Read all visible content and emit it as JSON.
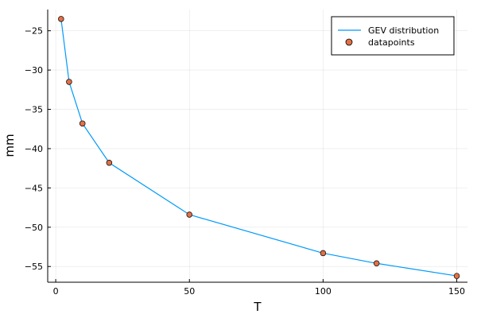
{
  "chart_data": {
    "type": "line",
    "title": "",
    "xlabel": "T",
    "ylabel": "mm",
    "xlim": [
      -3,
      154
    ],
    "ylim": [
      -57.0,
      -22.3
    ],
    "xticks": [
      0,
      50,
      100,
      150
    ],
    "yticks": [
      -55,
      -50,
      -45,
      -40,
      -35,
      -30,
      -25
    ],
    "grid": true,
    "legend_position": "top-right",
    "series": [
      {
        "name": "GEV distribution",
        "kind": "line",
        "color": "#009AFA",
        "x": [
          2,
          5,
          10,
          20,
          50,
          100,
          120,
          150
        ],
        "y": [
          -23.5,
          -31.5,
          -36.8,
          -41.8,
          -48.4,
          -53.3,
          -54.6,
          -56.2
        ]
      },
      {
        "name": "datapoints",
        "kind": "scatter",
        "color": "#E26F46",
        "x": [
          2,
          5,
          10,
          20,
          50,
          100,
          120,
          150
        ],
        "y": [
          -23.5,
          -31.5,
          -36.8,
          -41.8,
          -48.4,
          -53.3,
          -54.6,
          -56.2
        ]
      }
    ]
  }
}
